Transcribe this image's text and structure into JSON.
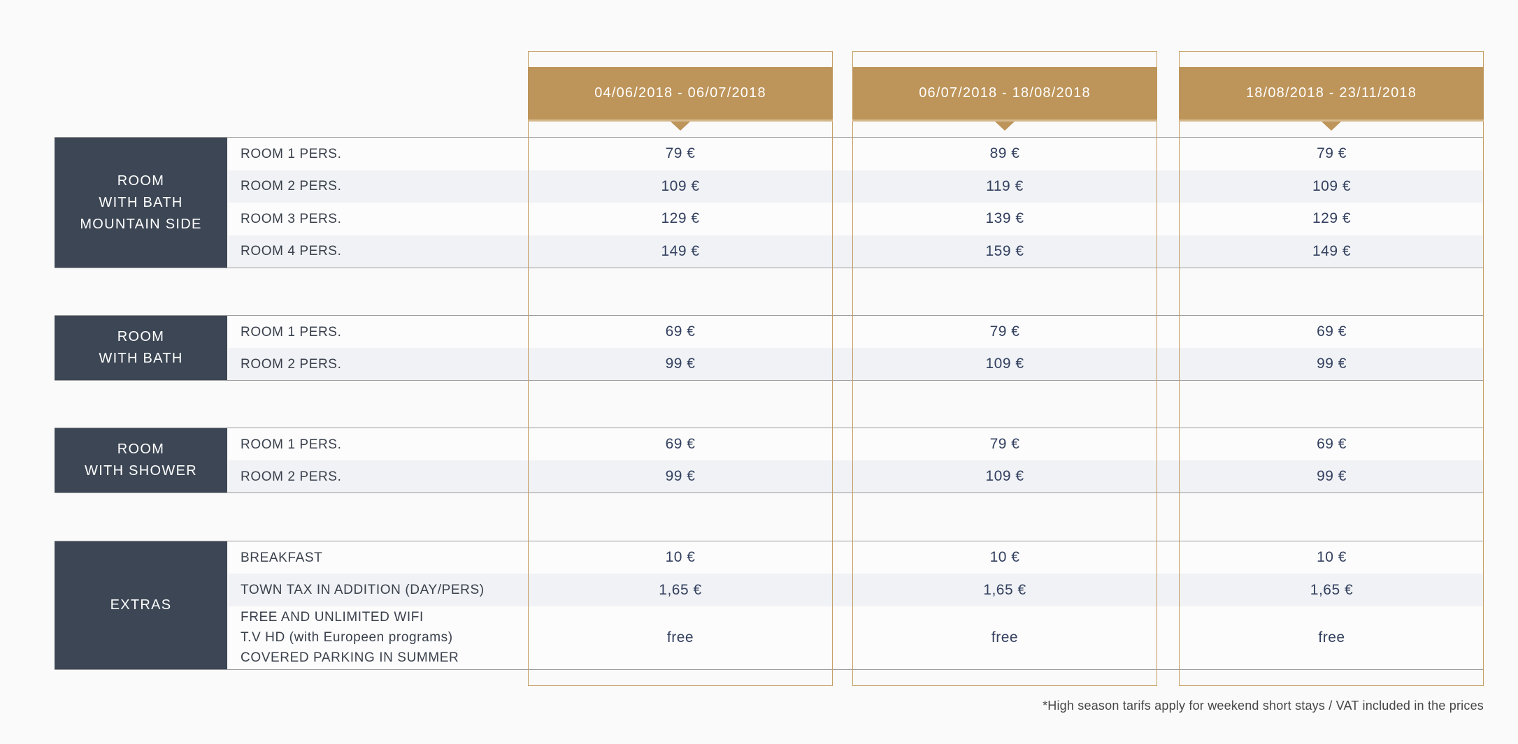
{
  "table": {
    "seasons": [
      "04/06/2018 - 06/07/2018",
      "06/07/2018 - 18/08/2018",
      "18/08/2018 - 23/11/2018"
    ],
    "groups": [
      {
        "label_lines": [
          "ROOM",
          "WITH BATH",
          "MOUNTAIN SIDE"
        ],
        "rows": [
          {
            "label": "ROOM 1 PERS.",
            "values": [
              "79 €",
              "89 €",
              "79 €"
            ]
          },
          {
            "label": "ROOM 2 PERS.",
            "values": [
              "109 €",
              "119 €",
              "109 €"
            ]
          },
          {
            "label": "ROOM 3 PERS.",
            "values": [
              "129 €",
              "139 €",
              "129 €"
            ]
          },
          {
            "label": "ROOM 4 PERS.",
            "values": [
              "149 €",
              "159 €",
              "149 €"
            ]
          }
        ]
      },
      {
        "label_lines": [
          "ROOM",
          "WITH BATH"
        ],
        "rows": [
          {
            "label": "ROOM 1 PERS.",
            "values": [
              "69 €",
              "79 €",
              "69 €"
            ]
          },
          {
            "label": "ROOM 2 PERS.",
            "values": [
              "99 €",
              "109 €",
              "99 €"
            ]
          }
        ]
      },
      {
        "label_lines": [
          "ROOM",
          "WITH SHOWER"
        ],
        "rows": [
          {
            "label": "ROOM 1 PERS.",
            "values": [
              "69 €",
              "79 €",
              "69 €"
            ]
          },
          {
            "label": "ROOM 2 PERS.",
            "values": [
              "99 €",
              "109 €",
              "99 €"
            ]
          }
        ]
      },
      {
        "label_lines": [
          "EXTRAS"
        ],
        "rows": [
          {
            "label": "BREAKFAST",
            "values": [
              "10 €",
              "10 €",
              "10 €"
            ]
          },
          {
            "label": "TOWN TAX IN ADDITION (DAY/PERS)",
            "values": [
              "1,65 €",
              "1,65 €",
              "1,65 €"
            ]
          },
          {
            "label_lines": [
              "FREE AND UNLIMITED WIFI",
              "T.V HD (with Europeen programs)",
              "COVERED PARKING IN SUMMER"
            ],
            "values": [
              "free",
              "free",
              "free"
            ]
          }
        ]
      }
    ],
    "footnote": "*High season tarifs apply for weekend short stays / VAT included in the prices"
  },
  "colors": {
    "gold": "#BD9459",
    "gold_border": "#C49D64",
    "slate": "#3C4654",
    "row_stripe": "#F0F2F5",
    "price_text": "#33405F",
    "group_border": "#9A9A9A",
    "background": "#FAFAFA"
  }
}
